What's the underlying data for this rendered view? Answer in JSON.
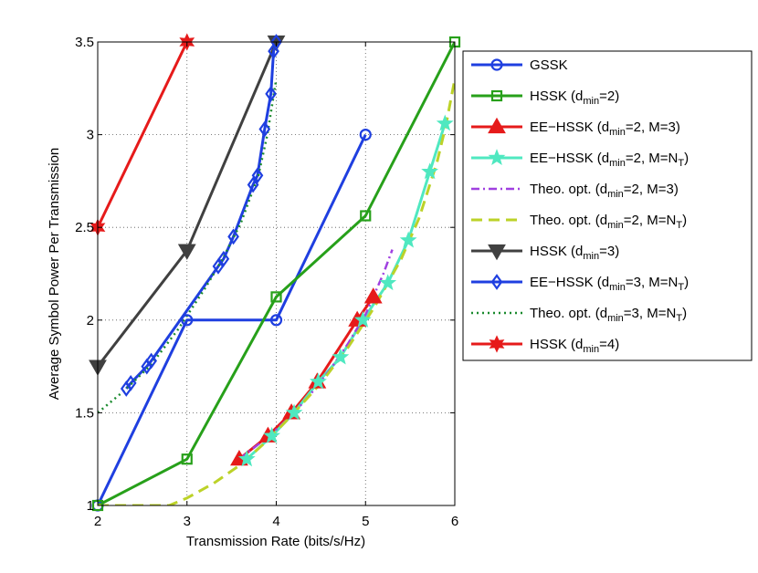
{
  "chart_data": {
    "type": "line",
    "title": "",
    "xlabel": "Transmission Rate (bits/s/Hz)",
    "ylabel": "Average Symbol Power Per Transmission",
    "xlim": [
      2,
      6
    ],
    "ylim": [
      1,
      3.5
    ],
    "xticks": [
      "2",
      "3",
      "4",
      "5",
      "6"
    ],
    "yticks": [
      "1",
      "1.5",
      "2",
      "2.5",
      "3",
      "3.5"
    ],
    "grid": true,
    "legend_position": "right",
    "series": [
      {
        "name": "GSSK",
        "sub": "",
        "tail": "",
        "color": "#1f3fe0",
        "width": 3.0,
        "dash": "",
        "marker": "circle",
        "x": [
          2,
          3,
          4,
          5
        ],
        "y": [
          1.0,
          2.0,
          2.0,
          3.0
        ]
      },
      {
        "name": "HSSK (d",
        "sub": "min",
        "tail": "=2)",
        "color": "#27a01a",
        "width": 3.0,
        "dash": "",
        "marker": "square",
        "x": [
          2,
          3,
          4,
          5,
          6
        ],
        "y": [
          1.0,
          1.25,
          2.125,
          2.5625,
          3.5
        ]
      },
      {
        "name": "EE−HSSK (d",
        "sub": "min",
        "tail": "=2, M=3)",
        "color": "#e61a1a",
        "width": 3.0,
        "dash": "",
        "marker": "triangle",
        "x": [
          3.585,
          3.907,
          4.17,
          4.459,
          4.907,
          5.087
        ],
        "y": [
          1.25,
          1.375,
          1.5,
          1.667,
          2.0,
          2.125
        ]
      },
      {
        "name": "EE−HSSK (d",
        "sub": "min",
        "tail": "=2, M=N",
        "sub2": "T",
        "tail2": ")",
        "color": "#4fe8c0",
        "width": 3.0,
        "dash": "",
        "marker": "star5",
        "x": [
          3.67,
          3.95,
          4.2,
          4.47,
          4.72,
          4.97,
          5.25,
          5.48,
          5.72,
          5.89
        ],
        "y": [
          1.25,
          1.375,
          1.5,
          1.667,
          1.8,
          2.0,
          2.2,
          2.43,
          2.8,
          3.06
        ]
      },
      {
        "name": "Theo. opt. (d",
        "sub": "min",
        "tail": "=2, M=3)",
        "color": "#a040e0",
        "width": 2.5,
        "dash": "9,4,2,4",
        "marker": "none",
        "x": [
          3.585,
          3.8,
          4.0,
          4.2,
          4.4,
          4.6,
          4.8,
          5.0,
          5.2,
          5.3
        ],
        "y": [
          1.25,
          1.33,
          1.41,
          1.5,
          1.61,
          1.73,
          1.87,
          2.03,
          2.25,
          2.38
        ]
      },
      {
        "name": "Theo. opt. (d",
        "sub": "min",
        "tail": "=2, M=N",
        "sub2": "T",
        "tail2": ")",
        "color": "#bcd228",
        "width": 3.0,
        "dash": "12,7",
        "marker": "none",
        "x": [
          2,
          2.5,
          2.8,
          3.0,
          3.3,
          3.6,
          3.9,
          4.2,
          4.5,
          4.8,
          5.1,
          5.4,
          5.6,
          5.8,
          5.9,
          6.0
        ],
        "y": [
          1.0,
          1.0,
          1.0,
          1.04,
          1.12,
          1.22,
          1.35,
          1.5,
          1.66,
          1.85,
          2.07,
          2.33,
          2.55,
          2.85,
          3.05,
          3.3
        ]
      },
      {
        "name": "HSSK (d",
        "sub": "min",
        "tail": "=3)",
        "color": "#404040",
        "width": 3.0,
        "dash": "",
        "marker": "triangle-down",
        "x": [
          2,
          3,
          4
        ],
        "y": [
          1.75,
          2.375,
          3.5
        ]
      },
      {
        "name": "EE−HSSK (d",
        "sub": "min",
        "tail": "=3, M=N",
        "sub2": "T",
        "tail2": ")",
        "color": "#1f3fe0",
        "width": 3.0,
        "dash": "",
        "marker": "diamond",
        "x": [
          2.32,
          2.37,
          2.55,
          2.6,
          3.35,
          3.41,
          3.52,
          3.74,
          3.79,
          3.87,
          3.94,
          3.97,
          4.0
        ],
        "y": [
          1.63,
          1.66,
          1.75,
          1.78,
          2.29,
          2.33,
          2.45,
          2.73,
          2.78,
          3.03,
          3.22,
          3.45,
          3.5
        ]
      },
      {
        "name": "Theo. opt. (d",
        "sub": "min",
        "tail": "=3, M=N",
        "sub2": "T",
        "tail2": ")",
        "color": "#1a8a2e",
        "width": 2.5,
        "dash": "2,4",
        "marker": "none",
        "x": [
          2.0,
          2.3,
          2.6,
          2.9,
          3.2,
          3.4,
          3.6,
          3.8,
          3.9,
          4.0
        ],
        "y": [
          1.5,
          1.62,
          1.76,
          1.95,
          2.17,
          2.33,
          2.52,
          2.78,
          3.0,
          3.3
        ]
      },
      {
        "name": "HSSK (d",
        "sub": "min",
        "tail": "=4)",
        "color": "#e61a1a",
        "width": 3.0,
        "dash": "",
        "marker": "star6",
        "x": [
          2,
          3
        ],
        "y": [
          2.5,
          3.5
        ]
      }
    ]
  }
}
